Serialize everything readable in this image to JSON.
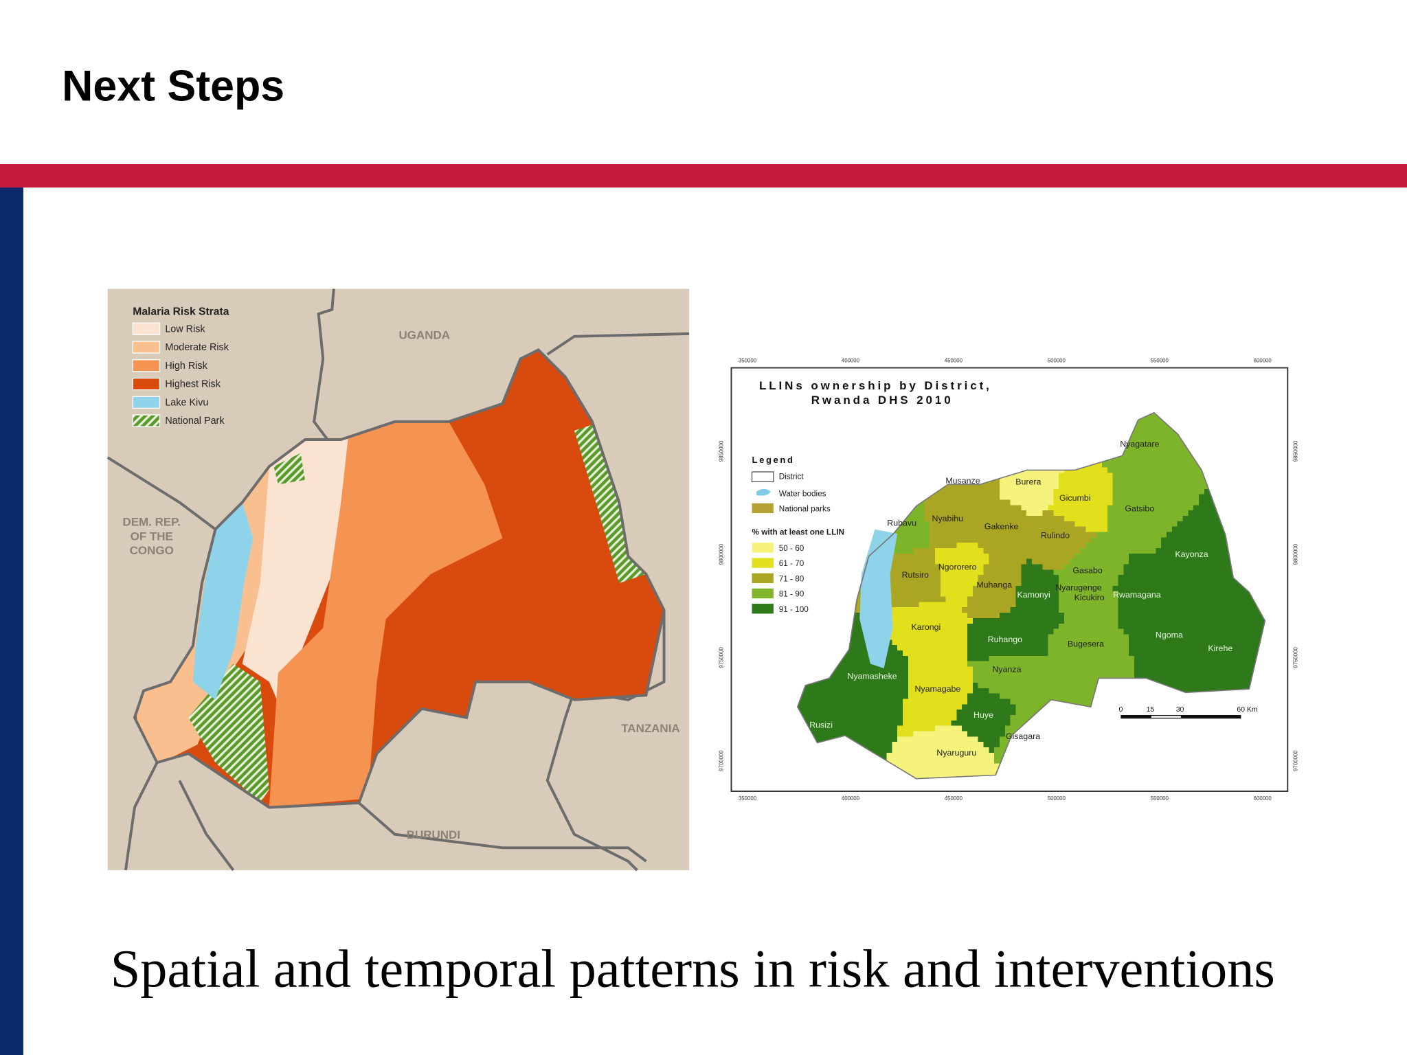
{
  "header": {
    "title": "Next Steps"
  },
  "risk_map": {
    "legend_title": "Malaria Risk Strata",
    "legend": [
      "Low Risk",
      "Moderate Risk",
      "High Risk",
      "Highest Risk",
      "Lake Kivu",
      "National Park"
    ],
    "countries": {
      "uganda": "UGANDA",
      "drc": [
        "DEM. REP.",
        "OF THE",
        "CONGO"
      ],
      "tanzania": "TANZANIA",
      "burundi": "BURUNDI"
    }
  },
  "llin_map": {
    "title": [
      "LLINs ownership by District,",
      "Rwanda DHS 2010"
    ],
    "legend_title": "Legend",
    "legend": [
      "District",
      "Water bodies",
      "National parks"
    ],
    "scale_title": "% with at least one LLIN",
    "classes": [
      "50 - 60",
      "61 - 70",
      "71 - 80",
      "81 - 90",
      "91 - 100"
    ],
    "x_ticks": [
      "350000",
      "400000",
      "450000",
      "500000",
      "550000",
      "600000"
    ],
    "y_ticks": [
      "9700000",
      "9750000",
      "9800000",
      "9850000"
    ],
    "scale_bar": [
      "0",
      "15",
      "30",
      "60 Km"
    ],
    "districts": [
      "Nyagatare",
      "Gatsibo",
      "Kayonza",
      "Rwamagana",
      "Ngoma",
      "Kirehe",
      "Bugesera",
      "Gasabo",
      "Nyarugenge",
      "Kicukiro",
      "Kamonyi",
      "Muhanga",
      "Ruhango",
      "Nyanza",
      "Huye",
      "Gisagara",
      "Nyaruguru",
      "Nyamagabe",
      "Karongi",
      "Nyamasheke",
      "Rusizi",
      "Rutsiro",
      "Ngororero",
      "Rubavu",
      "Nyabihu",
      "Musanze",
      "Burera",
      "Gicumbi",
      "Gakenke",
      "Rulindo"
    ]
  },
  "caption": "Spatial and temporal patterns in risk and interventions"
}
